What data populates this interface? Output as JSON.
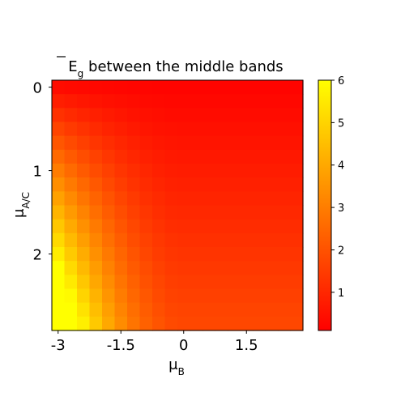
{
  "chart_data": {
    "type": "heatmap",
    "title_main": "E",
    "title_sub": "g",
    "title_rest": " between the middle bands",
    "xlabel_main": "μ",
    "xlabel_sub": "B",
    "ylabel_main": "μ",
    "ylabel_sub": "A/C",
    "x_range": [
      -3,
      3
    ],
    "y_range": [
      0,
      3
    ],
    "x_ticks": [
      {
        "value": -3,
        "label": "-3"
      },
      {
        "value": -1.5,
        "label": "-1.5"
      },
      {
        "value": 0,
        "label": "0"
      },
      {
        "value": 1.5,
        "label": "1.5"
      }
    ],
    "y_ticks": [
      {
        "value": 0,
        "label": "0"
      },
      {
        "value": 1,
        "label": "1"
      },
      {
        "value": 2,
        "label": "2"
      }
    ],
    "grid": {
      "cols": 20,
      "rows": 18
    },
    "colorbar": {
      "colormap": "autumn",
      "min": 0.1,
      "max": 6,
      "ticks": [
        {
          "value": 1,
          "label": "1"
        },
        {
          "value": 2,
          "label": "2"
        },
        {
          "value": 3,
          "label": "3"
        },
        {
          "value": 4,
          "label": "4"
        },
        {
          "value": 5,
          "label": "5"
        },
        {
          "value": 6,
          "label": "6"
        }
      ]
    },
    "colors": {
      "low": "#ff0000",
      "high": "#ffff00",
      "frame": "#000000",
      "background": "#ffffff"
    }
  }
}
